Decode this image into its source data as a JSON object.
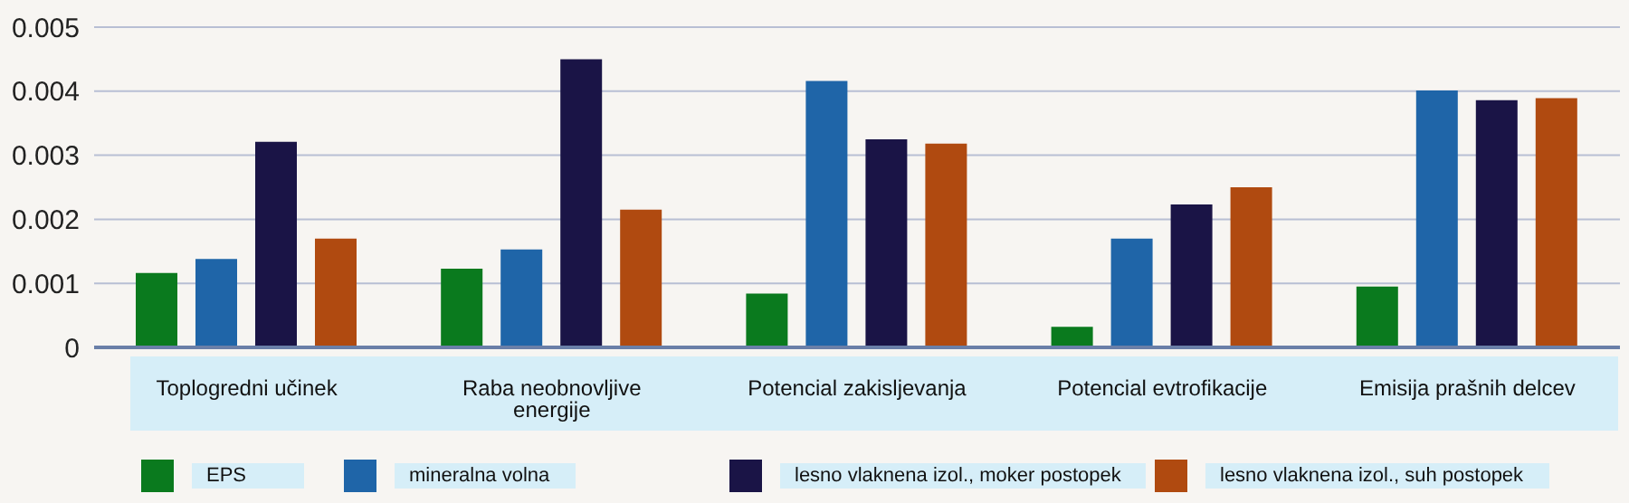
{
  "chart_data": {
    "type": "bar",
    "categories": [
      "Toplogredni učinek",
      "Raba neobnovljive energije",
      "Potencial zakisljevanja",
      "Potencial evtrofikacije",
      "Emisija prašnih delcev"
    ],
    "series": [
      {
        "name": "EPS",
        "color": "#0a7a1e",
        "values": [
          0.00116,
          0.00123,
          0.00084,
          0.00032,
          0.00095
        ]
      },
      {
        "name": "mineralna volna",
        "color": "#1f65a8",
        "values": [
          0.00138,
          0.00153,
          0.00416,
          0.0017,
          0.00401
        ]
      },
      {
        "name": "lesno vlaknena izol., moker postopek",
        "color": "#1a1446",
        "values": [
          0.00321,
          0.0045,
          0.00325,
          0.00223,
          0.00386
        ]
      },
      {
        "name": "lesno vlaknena izol., suh postopek",
        "color": "#b04a10",
        "values": [
          0.0017,
          0.00215,
          0.00318,
          0.0025,
          0.00389
        ]
      }
    ],
    "ylim": [
      0,
      0.005
    ],
    "yticks": [
      0,
      0.001,
      0.002,
      0.003,
      0.004,
      0.005
    ],
    "grid": "y",
    "legend": "bottom"
  }
}
